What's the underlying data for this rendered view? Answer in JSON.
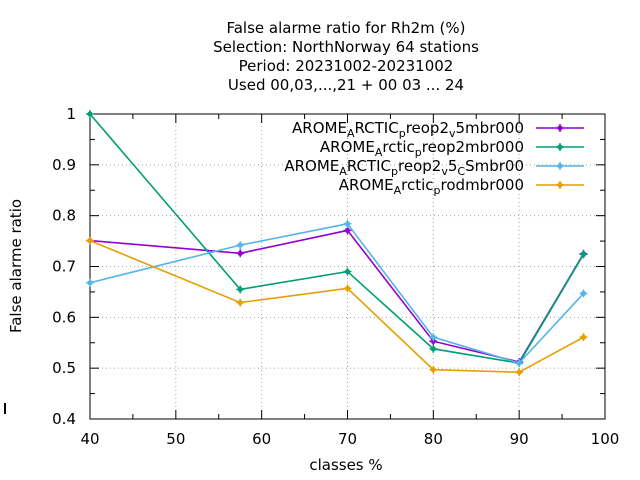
{
  "chart_data": {
    "type": "line",
    "title_lines": [
      "False alarme ratio  for Rh2m (%)",
      "Selection: NorthNorway     64 stations",
      "Period: 20231002-20231002",
      "Used  00,03,...,21  + 00 03 ... 24"
    ],
    "xlabel": "classes %",
    "ylabel": "False alarme ratio",
    "xlim": [
      40,
      100
    ],
    "ylim": [
      0.4,
      1.0
    ],
    "x_ticks": [
      40,
      50,
      60,
      70,
      80,
      90,
      100
    ],
    "y_ticks": [
      0.4,
      0.5,
      0.6,
      0.7,
      0.8,
      0.9,
      1.0
    ],
    "x_tick_labels": [
      "40",
      "50",
      "60",
      "70",
      "80",
      "90",
      "100"
    ],
    "y_tick_labels": [
      "0.4",
      "0.5",
      "0.6",
      "0.7",
      "0.8",
      "0.9",
      "1"
    ],
    "grid": true,
    "legend_position": "top-right",
    "x": [
      40,
      57.5,
      70,
      80,
      90,
      97.5
    ],
    "series": [
      {
        "name": "AROME_ARCTIC_preop2_v5mbr000",
        "legend_parts": [
          [
            "AROME",
            "n"
          ],
          [
            "A",
            "sub"
          ],
          [
            "RCTIC",
            "n"
          ],
          [
            "p",
            "sub"
          ],
          [
            "reop2",
            "n"
          ],
          [
            "v",
            "sub"
          ],
          [
            "5mbr000",
            "n"
          ]
        ],
        "color": "#9400d3",
        "values": [
          0.751,
          0.726,
          0.771,
          0.553,
          0.512,
          0.725
        ]
      },
      {
        "name": "AROME_Arctic_preop2mbr000",
        "legend_parts": [
          [
            "AROME",
            "n"
          ],
          [
            "A",
            "sub"
          ],
          [
            "rctic",
            "n"
          ],
          [
            "p",
            "sub"
          ],
          [
            "reop2mbr000",
            "n"
          ]
        ],
        "color": "#009e73",
        "values": [
          1.0,
          0.655,
          0.69,
          0.538,
          0.51,
          0.724
        ]
      },
      {
        "name": "AROME_ARCTIC_preop2_v5_CSmbr00",
        "legend_parts": [
          [
            "AROME",
            "n"
          ],
          [
            "A",
            "sub"
          ],
          [
            "RCTIC",
            "n"
          ],
          [
            "p",
            "sub"
          ],
          [
            "reop2",
            "n"
          ],
          [
            "v",
            "sub"
          ],
          [
            "5",
            "n"
          ],
          [
            "C",
            "sub"
          ],
          [
            "Smbr00",
            "n"
          ]
        ],
        "color": "#56b4e9",
        "values": [
          0.668,
          0.742,
          0.784,
          0.561,
          0.51,
          0.647
        ]
      },
      {
        "name": "AROME_Arctic_prodmbr000",
        "legend_parts": [
          [
            "AROME",
            "n"
          ],
          [
            "A",
            "sub"
          ],
          [
            "rctic",
            "n"
          ],
          [
            "p",
            "sub"
          ],
          [
            "rodmbr000",
            "n"
          ]
        ],
        "color": "#e69f00",
        "values": [
          0.751,
          0.629,
          0.657,
          0.497,
          0.492,
          0.561
        ]
      }
    ]
  }
}
